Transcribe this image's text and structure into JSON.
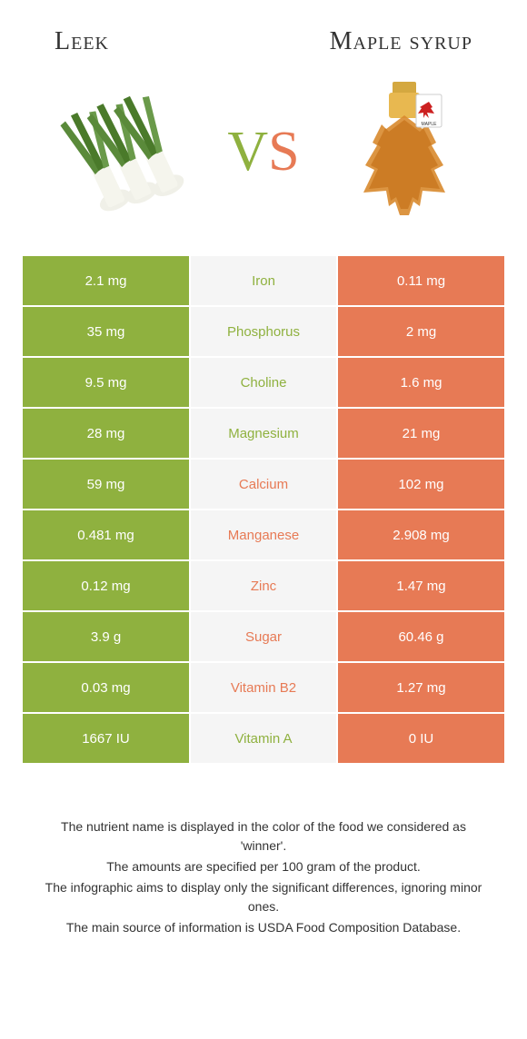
{
  "left_title": "Leek",
  "right_title": "Maple syrup",
  "vs_v": "V",
  "vs_s": "S",
  "colors": {
    "left": "#8fb13f",
    "right": "#e77a55",
    "mid_bg": "#f5f5f5"
  },
  "rows": [
    {
      "left": "2.1 mg",
      "label": "Iron",
      "right": "0.11 mg",
      "winner": "left"
    },
    {
      "left": "35 mg",
      "label": "Phosphorus",
      "right": "2 mg",
      "winner": "left"
    },
    {
      "left": "9.5 mg",
      "label": "Choline",
      "right": "1.6 mg",
      "winner": "left"
    },
    {
      "left": "28 mg",
      "label": "Magnesium",
      "right": "21 mg",
      "winner": "left"
    },
    {
      "left": "59 mg",
      "label": "Calcium",
      "right": "102 mg",
      "winner": "right"
    },
    {
      "left": "0.481 mg",
      "label": "Manganese",
      "right": "2.908 mg",
      "winner": "right"
    },
    {
      "left": "0.12 mg",
      "label": "Zinc",
      "right": "1.47 mg",
      "winner": "right"
    },
    {
      "left": "3.9 g",
      "label": "Sugar",
      "right": "60.46 g",
      "winner": "right"
    },
    {
      "left": "0.03 mg",
      "label": "Vitamin B2",
      "right": "1.27 mg",
      "winner": "right"
    },
    {
      "left": "1667 IU",
      "label": "Vitamin A",
      "right": "0 IU",
      "winner": "left"
    }
  ],
  "footer": [
    "The nutrient name is displayed in the color of the food we considered as 'winner'.",
    "The amounts are specified per 100 gram of the product.",
    "The infographic aims to display only the significant differences, ignoring minor ones.",
    "The main source of information is USDA Food Composition Database."
  ]
}
